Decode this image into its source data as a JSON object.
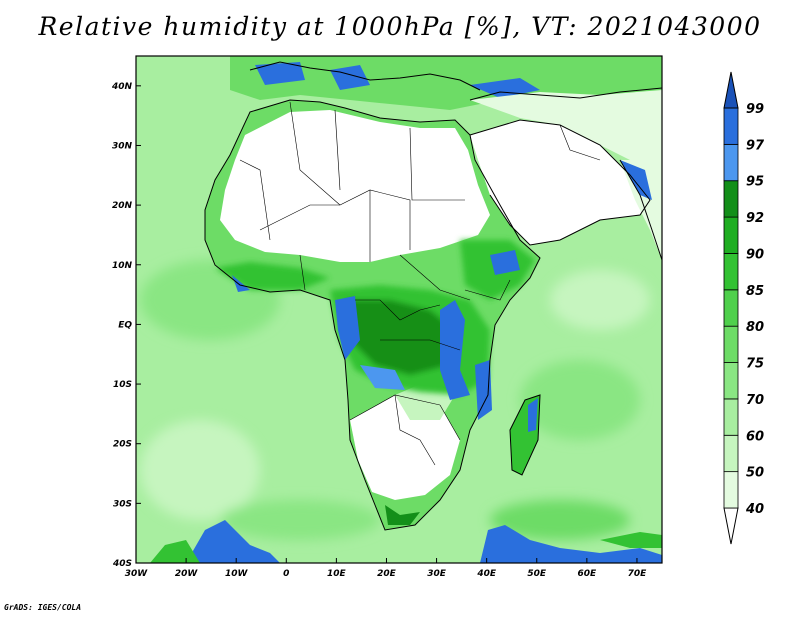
{
  "title": "Relative humidity at 1000hPa [%], VT: 2021043000",
  "footer": "GrADS: IGES/COLA",
  "map": {
    "lon_range": [
      -30,
      75
    ],
    "lat_range": [
      -40,
      45
    ],
    "x_ticks": [
      {
        "lon": -30,
        "label": "30W"
      },
      {
        "lon": -20,
        "label": "20W"
      },
      {
        "lon": -10,
        "label": "10W"
      },
      {
        "lon": 0,
        "label": "0"
      },
      {
        "lon": 10,
        "label": "10E"
      },
      {
        "lon": 20,
        "label": "20E"
      },
      {
        "lon": 30,
        "label": "30E"
      },
      {
        "lon": 40,
        "label": "40E"
      },
      {
        "lon": 50,
        "label": "50E"
      },
      {
        "lon": 60,
        "label": "60E"
      },
      {
        "lon": 70,
        "label": "70E"
      }
    ],
    "y_ticks": [
      {
        "lat": 40,
        "label": "40N"
      },
      {
        "lat": 30,
        "label": "30N"
      },
      {
        "lat": 20,
        "label": "20N"
      },
      {
        "lat": 10,
        "label": "10N"
      },
      {
        "lat": 0,
        "label": "EQ"
      },
      {
        "lat": -10,
        "label": "10S"
      },
      {
        "lat": -20,
        "label": "20S"
      },
      {
        "lat": -30,
        "label": "30S"
      },
      {
        "lat": -40,
        "label": "40S"
      }
    ]
  },
  "colorbar": {
    "levels": [
      "40",
      "50",
      "60",
      "70",
      "75",
      "80",
      "85",
      "90",
      "92",
      "95",
      "97",
      "99"
    ],
    "colors": [
      "#ffffff",
      "#e4fbe0",
      "#c6f5bf",
      "#a8eea0",
      "#8ae683",
      "#6ddc66",
      "#4fd04c",
      "#33c233",
      "#1fae22",
      "#138f19",
      "#4c97ef",
      "#2a6fdd",
      "#1a52b8"
    ]
  },
  "colors": {
    "ocean": "#a8eea0",
    "ocean_humid": "#8ae683",
    "desert": "#ffffff",
    "land_humid": "#33c233",
    "land_veryhumid": "#138f19",
    "saturated": "#2a6fdd",
    "coast": "#000000"
  }
}
